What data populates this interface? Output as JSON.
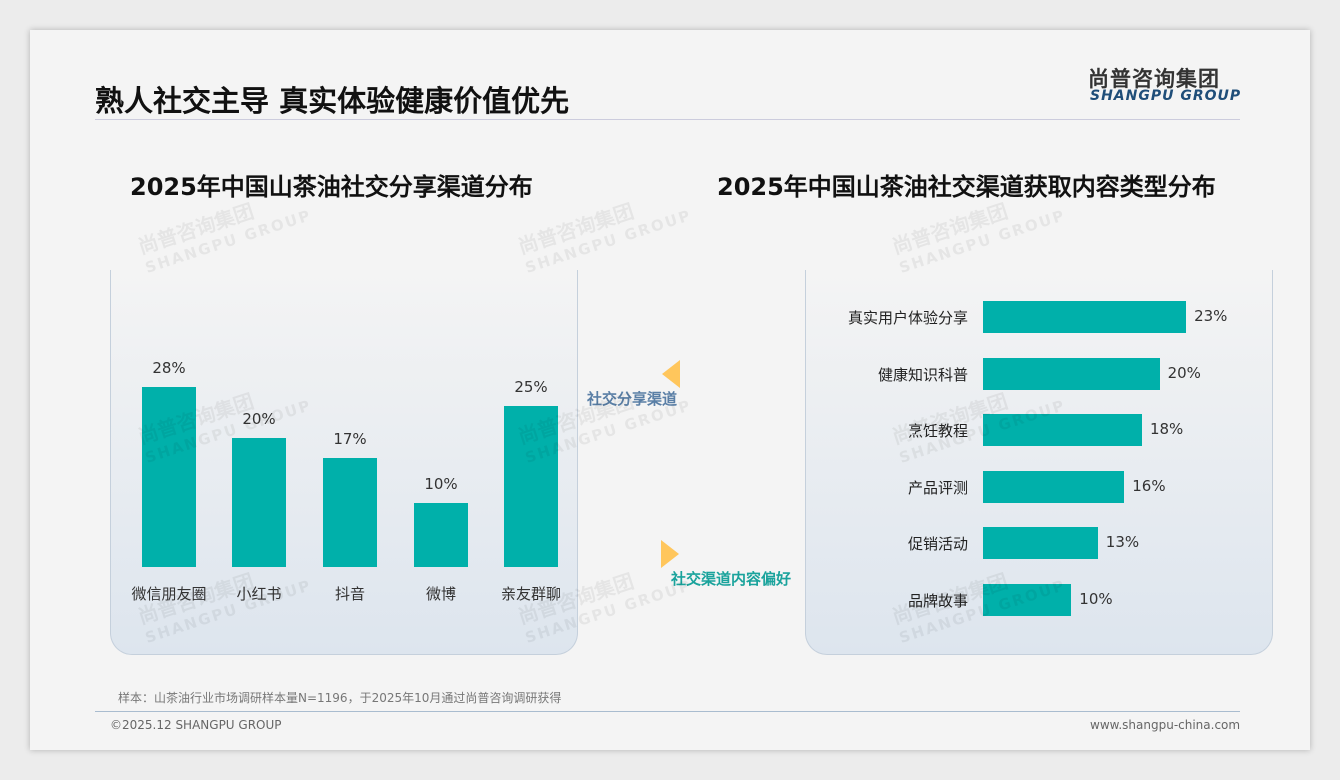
{
  "title": "熟人社交主导 真实体验健康价值优先",
  "logo": {
    "cn": "尚普咨询集团",
    "en": "SHANGPU GROUP"
  },
  "labels": {
    "share": "社交分享渠道",
    "content": "社交渠道内容偏好"
  },
  "note": "样本：山茶油行业市场调研样本量N=1196，于2025年10月通过尚普咨询调研获得",
  "copyright": "©2025.12 SHANGPU GROUP",
  "url": "www.shangpu-china.com",
  "colors": {
    "bar": "#00b0aa",
    "accent": "#ffc65c"
  },
  "chart_data": [
    {
      "type": "bar",
      "title": "2025年中国山茶油社交分享渠道分布",
      "categories": [
        "微信朋友圈",
        "小红书",
        "抖音",
        "微博",
        "亲友群聊"
      ],
      "values": [
        28,
        20,
        17,
        10,
        25
      ],
      "labels": [
        "28%",
        "20%",
        "17%",
        "10%",
        "25%"
      ],
      "unit": "%",
      "ylim": [
        0,
        30
      ]
    },
    {
      "type": "bar",
      "orientation": "horizontal",
      "title": "2025年中国山茶油社交渠道获取内容类型分布",
      "categories": [
        "真实用户体验分享",
        "健康知识科普",
        "烹饪教程",
        "产品评测",
        "促销活动",
        "品牌故事"
      ],
      "values": [
        23,
        20,
        18,
        16,
        13,
        10
      ],
      "labels": [
        "23%",
        "20%",
        "18%",
        "16%",
        "13%",
        "10%"
      ],
      "unit": "%",
      "xlim": [
        0,
        25
      ]
    }
  ]
}
